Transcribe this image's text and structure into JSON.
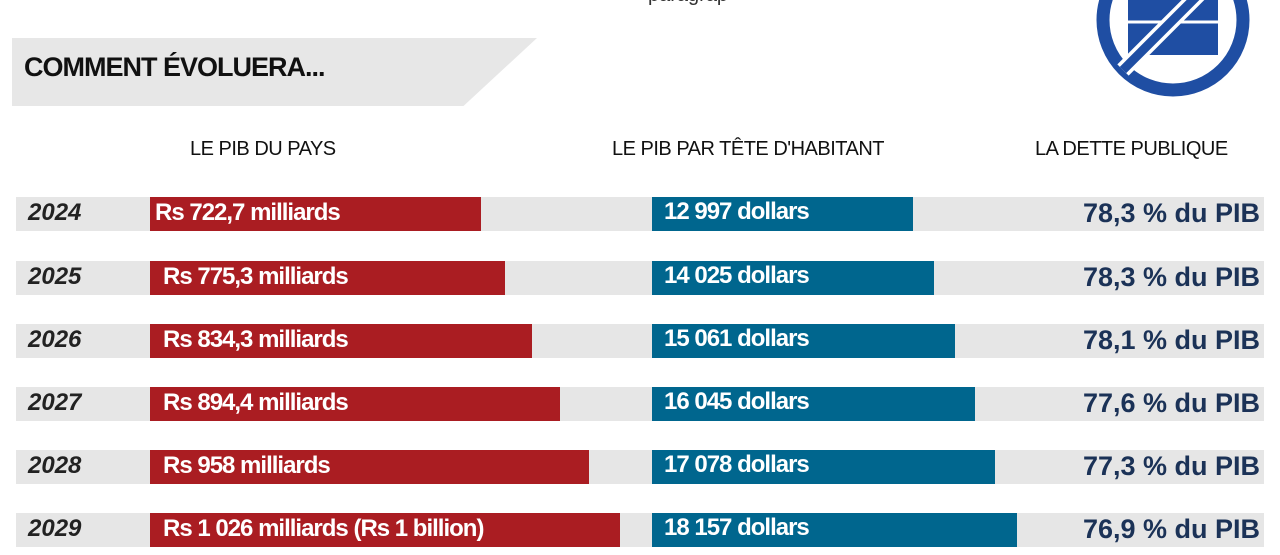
{
  "header": {
    "top_fragment": "paragrap",
    "title": "COMMENT ÉVOLUERA...",
    "icon": "no-briefcase-icon"
  },
  "columns": [
    "LE PIB DU PAYS",
    "LE PIB PAR TÊTE D'HABITANT",
    "LA DETTE PUBLIQUE"
  ],
  "colors": {
    "pib": "#aa1d22",
    "par_tete": "#00668e",
    "dette_text": "#1b3257",
    "row_bg": "#e6e6e6",
    "logo": "#1f4ea3"
  },
  "chart_data": {
    "type": "bar",
    "title": "COMMENT ÉVOLUERA...",
    "categories": [
      "2024",
      "2025",
      "2026",
      "2027",
      "2028",
      "2029"
    ],
    "series": [
      {
        "name": "LE PIB DU PAYS",
        "unit": "milliards Rs",
        "values": [
          722.7,
          775.3,
          834.3,
          894.4,
          958,
          1026
        ],
        "labels": [
          "Rs 722,7 milliards",
          "Rs 775,3 milliards",
          "Rs 834,3 milliards",
          "Rs 894,4 milliards",
          "Rs 958 milliards",
          "Rs 1 026 milliards (Rs 1 billion)"
        ]
      },
      {
        "name": "LE PIB PAR TÊTE D'HABITANT",
        "unit": "dollars",
        "values": [
          12997,
          14025,
          15061,
          16045,
          17078,
          18157
        ],
        "labels": [
          "12 997 dollars",
          "14 025 dollars",
          "15 061 dollars",
          "16 045 dollars",
          "17 078 dollars",
          "18 157 dollars"
        ]
      },
      {
        "name": "LA DETTE PUBLIQUE",
        "unit": "% du PIB",
        "values": [
          78.3,
          78.3,
          78.1,
          77.6,
          77.3,
          76.9
        ],
        "labels": [
          "78,3 % du PIB",
          "78,3 % du PIB",
          "78,1 % du PIB",
          "77,6 % du PIB",
          "77,3 % du PIB",
          "76,9 % du PIB"
        ]
      }
    ]
  }
}
